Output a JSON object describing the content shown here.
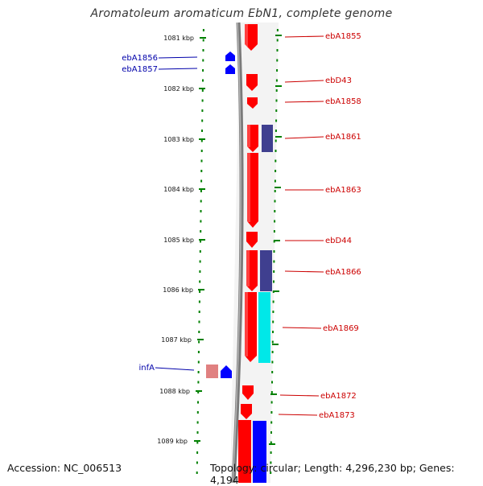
{
  "title": "Aromatoleum aromaticum EbN1, complete genome",
  "footer": {
    "accession": "Accession: NC_006513",
    "summary": "Topology: circular; Length: 4,296,230 bp; Genes: 4,194"
  },
  "colors": {
    "forward_gene": "#0000ff",
    "reverse_gene": "#ff0000",
    "forward_label": "#0000aa",
    "reverse_label": "#cc0000",
    "scale_marks": "#008000",
    "backbone": "#888888",
    "rna_pseudo": "#e08080",
    "gc_dark": "#3f3f8f",
    "gc_cyan": "#00e8e8"
  },
  "scale": {
    "unit": "kbp",
    "ticks": [
      "1081 kbp",
      "1082 kbp",
      "1083 kbp",
      "1084 kbp",
      "1085 kbp",
      "1086 kbp",
      "1087 kbp",
      "1088 kbp",
      "1089 kbp"
    ]
  },
  "genes": {
    "reverse": [
      "ebA1855",
      "ebD43",
      "ebA1858",
      "ebA1861",
      "ebA1863",
      "ebD44",
      "ebA1866",
      "ebA1869",
      "ebA1872",
      "ebA1873"
    ],
    "forward": [
      "ebA1856",
      "ebA1857",
      "infA"
    ]
  }
}
